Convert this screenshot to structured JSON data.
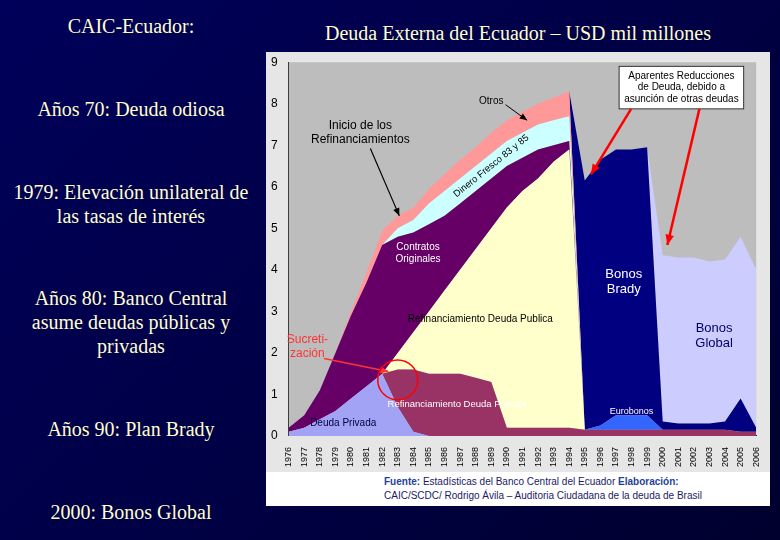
{
  "sidebar": {
    "heading": "CAIC-Ecuador:",
    "items": [
      "Años 70: Deuda odiosa",
      "1979: Elevación unilateral de las tasas de interés",
      "Años 80: Banco Central asume deudas públicas y privadas",
      "Años 90: Plan Brady",
      "2000: Bonos Global"
    ]
  },
  "chart_data": {
    "type": "area",
    "title": "Deuda Externa del Ecuador – USD mil millones",
    "stacked": true,
    "grid": false,
    "categories": [
      "1976",
      "1977",
      "1978",
      "1979",
      "1980",
      "1981",
      "1982",
      "1983",
      "1984",
      "1985",
      "1986",
      "1987",
      "1988",
      "1989",
      "1990",
      "1991",
      "1992",
      "1993",
      "1994",
      "1995",
      "1996",
      "1997",
      "1998",
      "1999",
      "2000",
      "2001",
      "2002",
      "2003",
      "2004",
      "2005",
      "2006"
    ],
    "ylim": [
      0,
      9
    ],
    "yticks": [
      0,
      1,
      2,
      3,
      4,
      5,
      6,
      7,
      8,
      9
    ],
    "series": [
      {
        "name": "Deuda Privada",
        "color": "#a3a3f5",
        "values": [
          0.1,
          0.2,
          0.4,
          0.6,
          0.9,
          1.2,
          1.5,
          0.7,
          0.1,
          0,
          0,
          0,
          0,
          0,
          0,
          0,
          0,
          0,
          0,
          0,
          0,
          0,
          0,
          0,
          0,
          0,
          0,
          0,
          0,
          0,
          0
        ]
      },
      {
        "name": "Refinanciamiento Deuda Privada",
        "color": "#993366",
        "values": [
          0,
          0,
          0,
          0,
          0,
          0,
          0,
          0.9,
          1.5,
          1.5,
          1.5,
          1.5,
          1.4,
          1.3,
          0.2,
          0.2,
          0.2,
          0.2,
          0.2,
          0.15,
          0.15,
          0.15,
          0.15,
          0.15,
          0.15,
          0.15,
          0.15,
          0.15,
          0.15,
          0.1,
          0.1
        ]
      },
      {
        "name": "Eurobonos",
        "color": "#3366ff",
        "values": [
          0,
          0,
          0,
          0,
          0,
          0,
          0,
          0,
          0,
          0,
          0,
          0,
          0,
          0,
          0,
          0,
          0,
          0,
          0,
          0,
          0.1,
          0.35,
          0.35,
          0.35,
          0,
          0,
          0,
          0,
          0,
          0,
          0
        ]
      },
      {
        "name": "Refinanciamiento Deuda Publica",
        "color": "#ffffcc",
        "values": [
          0,
          0,
          0,
          0,
          0,
          0,
          0,
          0.4,
          0.9,
          1.5,
          2.0,
          2.5,
          3.1,
          3.7,
          5.3,
          5.7,
          6.0,
          6.4,
          6.7,
          0,
          0,
          0,
          0,
          0,
          0,
          0,
          0,
          0,
          0,
          0,
          0
        ]
      },
      {
        "name": "Contratos Originales",
        "color": "#660066",
        "values": [
          0.1,
          0.3,
          0.7,
          1.4,
          2.0,
          2.5,
          3.1,
          2.8,
          2.4,
          2.1,
          1.8,
          1.6,
          1.4,
          1.2,
          1.0,
          0.8,
          0.7,
          0.4,
          0.2,
          0,
          0,
          0,
          0,
          0,
          0,
          0,
          0,
          0,
          0,
          0,
          0
        ]
      },
      {
        "name": "Dinero Fresco 83 y 85",
        "color": "#ccffff",
        "values": [
          0,
          0,
          0,
          0,
          0,
          0,
          0,
          0.2,
          0.3,
          0.5,
          0.6,
          0.6,
          0.6,
          0.6,
          0.6,
          0.6,
          0.6,
          0.6,
          0.6,
          0,
          0,
          0,
          0,
          0,
          0,
          0,
          0,
          0,
          0,
          0,
          0
        ]
      },
      {
        "name": "Otros",
        "color": "#ff9999",
        "values": [
          0,
          0,
          0,
          0,
          0.1,
          0.25,
          0.35,
          0.3,
          0.3,
          0.35,
          0.4,
          0.45,
          0.45,
          0.5,
          0.5,
          0.5,
          0.5,
          0.55,
          0.6,
          0,
          0,
          0,
          0,
          0,
          0,
          0,
          0,
          0,
          0,
          0,
          0
        ]
      },
      {
        "name": "Bonos Brady",
        "color": "#000080",
        "values": [
          0,
          0,
          0,
          0,
          0,
          0,
          0,
          0,
          0,
          0,
          0,
          0,
          0,
          0,
          0,
          0,
          0,
          0,
          0,
          6.0,
          6.4,
          6.4,
          6.4,
          6.45,
          0.2,
          0.15,
          0.15,
          0.15,
          0.2,
          0.8,
          0.1
        ]
      },
      {
        "name": "Bonos Global",
        "color": "#ccccff",
        "values": [
          0,
          0,
          0,
          0,
          0,
          0,
          0,
          0,
          0,
          0,
          0,
          0,
          0,
          0,
          0,
          0,
          0,
          0,
          0,
          0,
          0,
          0,
          0,
          0,
          4.0,
          4.0,
          4.0,
          3.9,
          3.9,
          3.9,
          3.8
        ]
      }
    ],
    "annotations": [
      {
        "text": [
          "Aparentes Reducciones",
          "de Deuda, debido a",
          "asunción de otras deudas"
        ]
      },
      {
        "text": [
          "Inicio de los",
          "Refinanciamientos"
        ]
      },
      {
        "text": [
          "Sucreti-",
          "zación"
        ]
      }
    ],
    "source": [
      "Fuente:",
      "Estadísticas del Banco Central del Ecuador",
      "Elaboración:",
      "CAIC/SCDC/ Rodrigo Ávila – Auditoria Ciudadana de la deuda de Brasil"
    ]
  }
}
